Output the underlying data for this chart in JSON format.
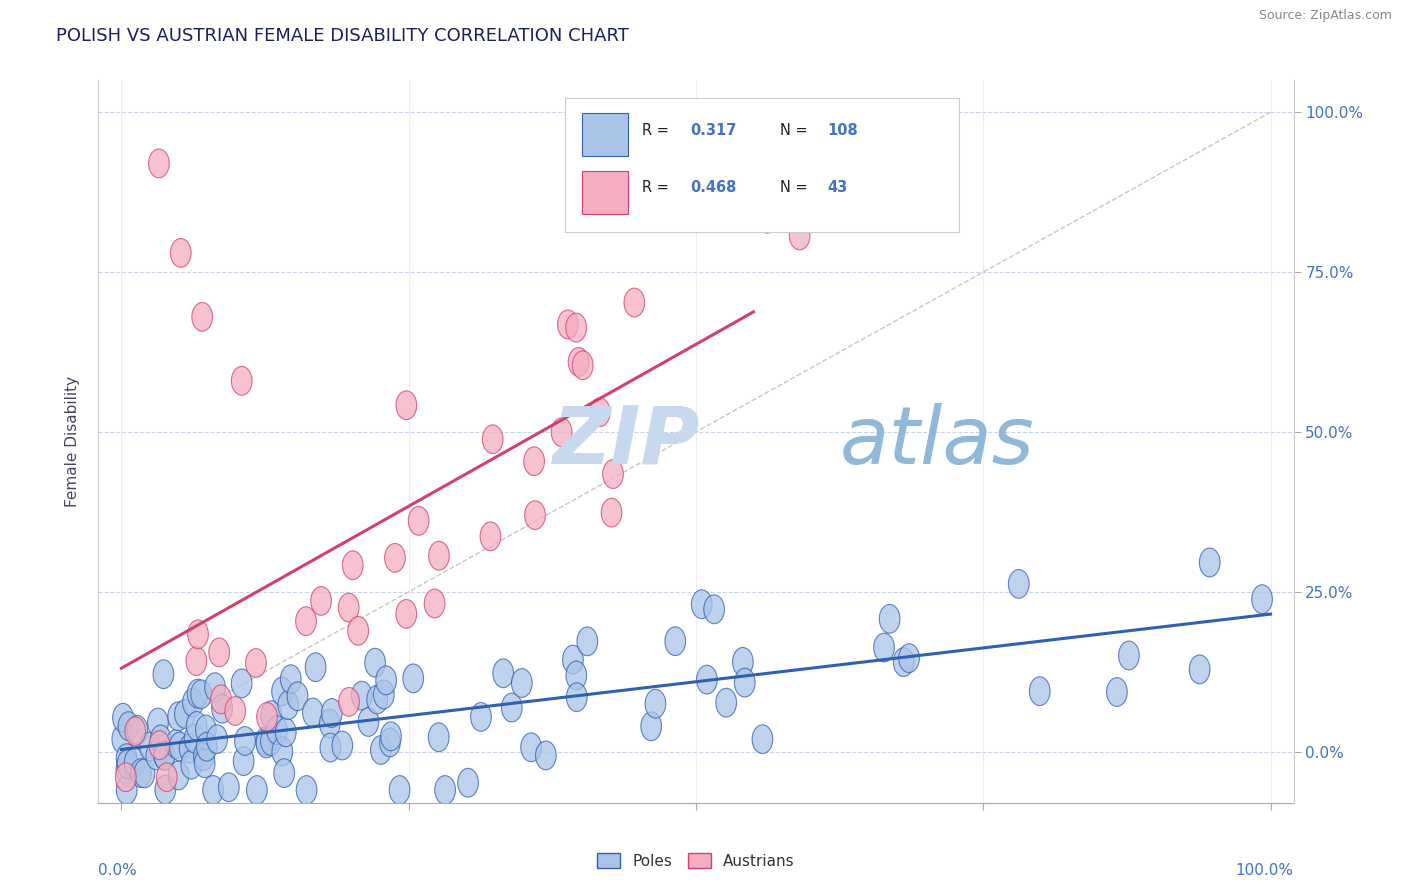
{
  "title": "POLISH VS AUSTRIAN FEMALE DISABILITY CORRELATION CHART",
  "source": "Source: ZipAtlas.com",
  "ylabel": "Female Disability",
  "R_poles": 0.317,
  "N_poles": 108,
  "R_austrians": 0.468,
  "N_austrians": 43,
  "color_poles": "#aac4e8",
  "color_austrians": "#f4aec0",
  "line_color_poles": "#3060b0",
  "line_color_austrians": "#d04070",
  "title_color": "#1a2060",
  "axis_label_color": "#4472c4",
  "watermark_color": "#ccdcee",
  "ytick_labels": [
    "0.0%",
    "25.0%",
    "50.0%",
    "75.0%",
    "100.0%"
  ],
  "ytick_values": [
    0.0,
    0.25,
    0.5,
    0.75,
    1.0
  ],
  "xlim": [
    0.0,
    1.0
  ],
  "ylim": [
    0.0,
    1.0
  ]
}
